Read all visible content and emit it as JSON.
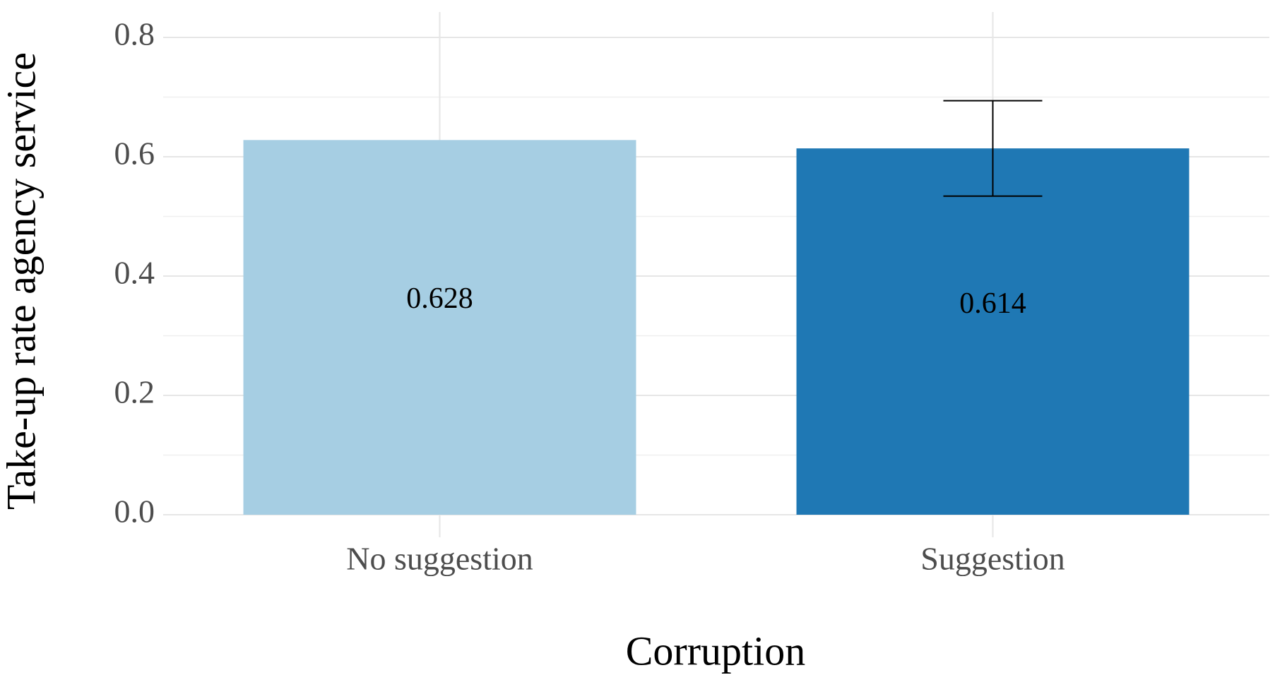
{
  "chart_data": {
    "type": "bar",
    "x_label": "Corruption",
    "y_label": "Take-up rate agency service",
    "categories": [
      "No suggestion",
      "Suggestion"
    ],
    "values": [
      0.628,
      0.614
    ],
    "errors": [
      null,
      0.08
    ],
    "colors": [
      "#a6cee3",
      "#1f78b4"
    ],
    "ylim": [
      0,
      0.8
    ],
    "yticks": [
      {
        "value": 0,
        "label": "0.0"
      },
      0.2,
      0.4,
      0.6,
      0.8
    ],
    "minor_yticks": [
      0.1,
      0.3,
      0.5,
      0.7
    ],
    "grid": true
  }
}
